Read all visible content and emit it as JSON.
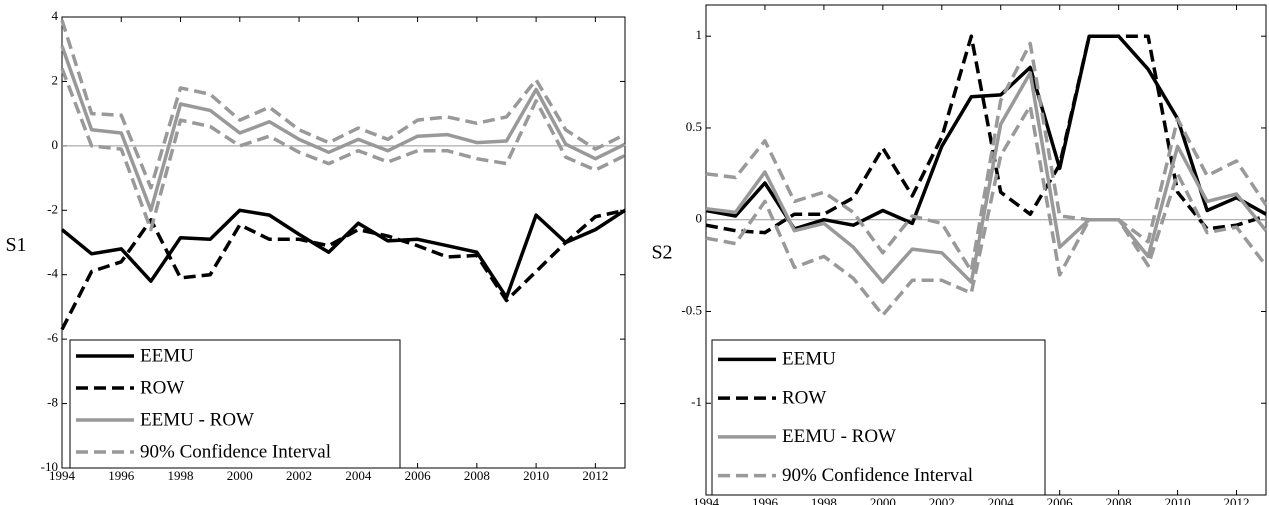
{
  "chart_data": [
    {
      "type": "line",
      "ylabel": "S1",
      "x": [
        1994,
        1995,
        1996,
        1997,
        1998,
        1999,
        2000,
        2001,
        2002,
        2003,
        2004,
        2005,
        2006,
        2007,
        2008,
        2009,
        2010,
        2011,
        2012,
        2013
      ],
      "xlim": [
        1994,
        2013
      ],
      "xticks": [
        1994,
        1996,
        1998,
        2000,
        2002,
        2004,
        2006,
        2008,
        2010,
        2012
      ],
      "ylim": [
        -10,
        4
      ],
      "yticks": [
        -10,
        -8,
        -6,
        -4,
        -2,
        0,
        2,
        4
      ],
      "hline": 0,
      "legend": "lower left",
      "series": [
        {
          "name": "EEMU",
          "color": "#000000",
          "dashed": false,
          "values": [
            -2.6,
            -3.35,
            -3.2,
            -4.2,
            -2.85,
            -2.9,
            -2.0,
            -2.15,
            -2.75,
            -3.3,
            -2.4,
            -2.95,
            -2.9,
            -3.1,
            -3.3,
            -4.7,
            -2.15,
            -3.0,
            -2.6,
            -2.0
          ]
        },
        {
          "name": "ROW",
          "color": "#000000",
          "dashed": true,
          "values": [
            -5.7,
            -3.9,
            -3.6,
            -2.3,
            -4.1,
            -4.0,
            -2.45,
            -2.9,
            -2.9,
            -3.1,
            -2.6,
            -2.8,
            -3.1,
            -3.45,
            -3.4,
            -4.8,
            -3.9,
            -3.0,
            -2.2,
            -2.0
          ]
        },
        {
          "name": "EEMU - ROW",
          "color": "#999999",
          "dashed": false,
          "values": [
            3.1,
            0.5,
            0.4,
            -2.0,
            1.3,
            1.1,
            0.4,
            0.75,
            0.2,
            -0.2,
            0.2,
            -0.15,
            0.3,
            0.35,
            0.1,
            0.15,
            1.75,
            0.05,
            -0.4,
            0.05
          ]
        },
        {
          "name": "90% Confidence Interval",
          "color": "#999999",
          "dashed": true,
          "upper": [
            3.9,
            1.0,
            0.95,
            -1.3,
            1.8,
            1.6,
            0.8,
            1.2,
            0.5,
            0.1,
            0.55,
            0.2,
            0.8,
            0.9,
            0.7,
            0.9,
            2.05,
            0.5,
            -0.1,
            0.35
          ],
          "lower": [
            2.4,
            0.0,
            -0.1,
            -2.6,
            0.8,
            0.6,
            0.0,
            0.3,
            -0.2,
            -0.55,
            -0.15,
            -0.5,
            -0.15,
            -0.15,
            -0.4,
            -0.55,
            1.4,
            -0.35,
            -0.75,
            -0.3
          ]
        }
      ]
    },
    {
      "type": "line",
      "ylabel": "S2",
      "x": [
        1994,
        1995,
        1996,
        1997,
        1998,
        1999,
        2000,
        2001,
        2002,
        2003,
        2004,
        2005,
        2006,
        2007,
        2008,
        2009,
        2010,
        2011,
        2012,
        2013
      ],
      "xlim": [
        1994,
        2013
      ],
      "xticks": [
        1994,
        1996,
        1998,
        2000,
        2002,
        2004,
        2006,
        2008,
        2010,
        2012
      ],
      "ylim": [
        -1.5,
        1.17
      ],
      "yticks": [
        -1,
        -0.5,
        0,
        0.5,
        1
      ],
      "hline": 0,
      "legend": "lower left",
      "series": [
        {
          "name": "EEMU",
          "color": "#000000",
          "dashed": false,
          "values": [
            0.05,
            0.02,
            0.2,
            -0.05,
            0.0,
            -0.03,
            0.05,
            -0.02,
            0.4,
            0.67,
            0.68,
            0.83,
            0.28,
            1.0,
            1.0,
            0.82,
            0.55,
            0.05,
            0.12,
            0.03
          ]
        },
        {
          "name": "ROW",
          "color": "#000000",
          "dashed": true,
          "values": [
            -0.03,
            -0.06,
            -0.07,
            0.03,
            0.03,
            0.12,
            0.39,
            0.13,
            0.45,
            1.0,
            0.15,
            0.03,
            0.3,
            1.0,
            1.0,
            1.0,
            0.15,
            -0.05,
            -0.03,
            0.02
          ]
        },
        {
          "name": "EEMU - ROW",
          "color": "#999999",
          "dashed": false,
          "values": [
            0.06,
            0.04,
            0.26,
            -0.06,
            -0.02,
            -0.15,
            -0.34,
            -0.16,
            -0.18,
            -0.34,
            0.52,
            0.8,
            -0.15,
            0.0,
            0.0,
            -0.2,
            0.4,
            0.1,
            0.14,
            -0.06
          ]
        },
        {
          "name": "90% Confidence Interval",
          "color": "#999999",
          "dashed": true,
          "upper": [
            0.25,
            0.23,
            0.43,
            0.1,
            0.15,
            0.04,
            -0.18,
            0.02,
            -0.02,
            -0.28,
            0.65,
            0.96,
            0.02,
            0.0,
            0.0,
            -0.12,
            0.55,
            0.24,
            0.32,
            0.08
          ],
          "lower": [
            -0.1,
            -0.13,
            0.1,
            -0.26,
            -0.2,
            -0.32,
            -0.52,
            -0.33,
            -0.33,
            -0.4,
            0.35,
            0.62,
            -0.3,
            0.0,
            0.0,
            -0.25,
            0.25,
            -0.07,
            -0.04,
            -0.25
          ]
        }
      ]
    }
  ]
}
